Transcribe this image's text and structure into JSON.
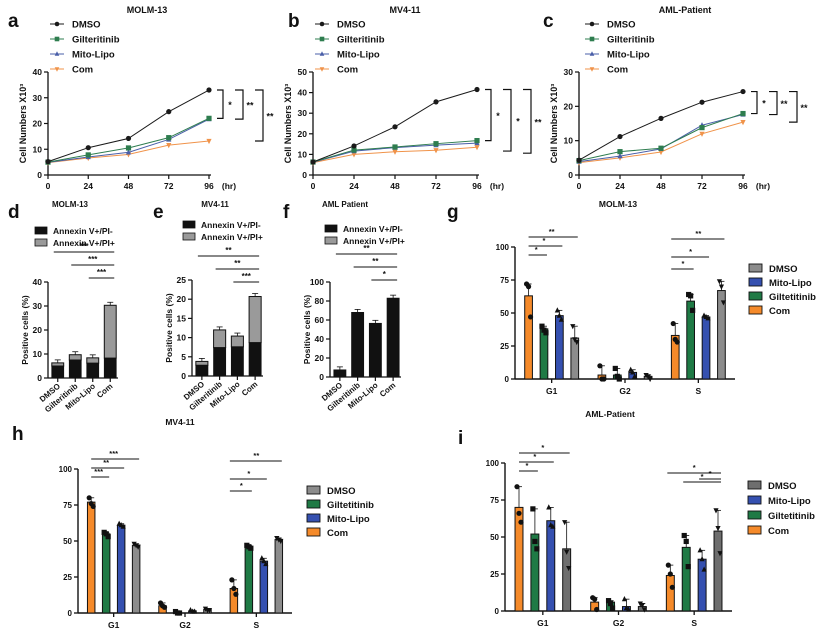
{
  "colors": {
    "dmso_line": "#1a1a1a",
    "gilteritinib_line": "#2e7d4f",
    "mitolipo_line": "#4a5fa8",
    "com_line": "#f0934a",
    "annexin_neg": "#111111",
    "annexin_pos": "#9a9a9a",
    "bar_com": "#f58a2a",
    "bar_gilt": "#1f7a45",
    "bar_mito": "#3550b0",
    "bar_dmso": "#8c8c8c",
    "bar_dmso_dark": "#6e6e6e"
  },
  "chart_data": [
    {
      "id": "a",
      "type": "line",
      "panel_label": "a",
      "title": "MOLM-13",
      "xlabel": "(hr)",
      "ylabel": "Cell Numbers X10³",
      "x": [
        0,
        24,
        48,
        72,
        96
      ],
      "xticks": [
        "0",
        "24",
        "48",
        "72",
        "96"
      ],
      "ylim": [
        0,
        40
      ],
      "yticks": [
        0,
        10,
        20,
        30,
        40
      ],
      "legend": [
        "DMSO",
        "Gilteritinib",
        "Mito-Lipo",
        "Com"
      ],
      "series": [
        {
          "name": "DMSO",
          "marker": "circle",
          "values": [
            5.2,
            10.6,
            14.2,
            24.6,
            33.0
          ]
        },
        {
          "name": "Gilteritinib",
          "marker": "square",
          "values": [
            5.0,
            7.8,
            10.5,
            14.5,
            22.0
          ]
        },
        {
          "name": "Mito-Lipo",
          "marker": "triangle-up",
          "values": [
            4.9,
            7.0,
            8.8,
            13.8,
            21.7
          ]
        },
        {
          "name": "Com",
          "marker": "triangle-down",
          "values": [
            4.8,
            6.6,
            8.0,
            11.6,
            13.2
          ]
        }
      ],
      "significance": [
        "*",
        "**",
        "**"
      ]
    },
    {
      "id": "b",
      "type": "line",
      "panel_label": "b",
      "title": "MV4-11",
      "xlabel": "(hr)",
      "ylabel": "Cell Numbers X10³",
      "x": [
        0,
        24,
        48,
        72,
        96
      ],
      "xticks": [
        "0",
        "24",
        "48",
        "72",
        "96"
      ],
      "ylim": [
        0,
        50
      ],
      "yticks": [
        0,
        10,
        20,
        30,
        40,
        50
      ],
      "legend": [
        "DMSO",
        "Gilteritinib",
        "Mito-Lipo",
        "Com"
      ],
      "series": [
        {
          "name": "DMSO",
          "marker": "circle",
          "values": [
            6.3,
            14.1,
            23.4,
            35.5,
            41.5
          ]
        },
        {
          "name": "Gilteritinib",
          "marker": "square",
          "values": [
            6.3,
            12.1,
            13.6,
            15.2,
            16.7
          ]
        },
        {
          "name": "Mito-Lipo",
          "marker": "triangle-up",
          "values": [
            6.2,
            11.6,
            13.3,
            14.5,
            15.5
          ]
        },
        {
          "name": "Com",
          "marker": "triangle-down",
          "values": [
            6.0,
            10.0,
            11.3,
            12.0,
            13.5
          ]
        }
      ],
      "significance": [
        "*",
        "*",
        "**"
      ]
    },
    {
      "id": "c",
      "type": "line",
      "panel_label": "c",
      "title": "AML-Patient",
      "xlabel": "(hr)",
      "ylabel": "Cell Numbers X10³",
      "x": [
        0,
        24,
        48,
        72,
        96
      ],
      "xticks": [
        "0",
        "24",
        "48",
        "72",
        "96"
      ],
      "ylim": [
        0,
        30
      ],
      "yticks": [
        0,
        10,
        20,
        30
      ],
      "legend": [
        "DMSO",
        "Gilteritinib",
        "Mito-Lipo",
        "Com"
      ],
      "series": [
        {
          "name": "DMSO",
          "marker": "circle",
          "values": [
            4.3,
            11.2,
            16.5,
            21.2,
            24.3
          ]
        },
        {
          "name": "Gilteritinib",
          "marker": "square",
          "values": [
            4.2,
            6.8,
            7.8,
            13.8,
            17.9
          ]
        },
        {
          "name": "Mito-Lipo",
          "marker": "triangle-up",
          "values": [
            3.9,
            5.5,
            7.6,
            14.5,
            17.6
          ]
        },
        {
          "name": "Com",
          "marker": "triangle-down",
          "values": [
            3.6,
            5.0,
            6.7,
            12.0,
            15.4
          ]
        }
      ],
      "significance": [
        "*",
        "**",
        "**"
      ]
    },
    {
      "id": "d",
      "type": "bar",
      "stacked": true,
      "panel_label": "d",
      "title": "MOLM-13",
      "ylabel": "Positive cells (%)",
      "ylim": [
        0,
        40
      ],
      "yticks": [
        0,
        10,
        20,
        30,
        40
      ],
      "categories": [
        "DMSO",
        "Gilteritinib",
        "Mito-Lipo",
        "Com"
      ],
      "series": [
        {
          "name": "Annexin V+/PI-",
          "values": [
            5.0,
            7.5,
            6.2,
            8.3
          ]
        },
        {
          "name": "Annexin V+/PI+",
          "values": [
            1.3,
            2.2,
            2.2,
            22.0
          ]
        }
      ],
      "significance": [
        "***",
        "***",
        "***"
      ]
    },
    {
      "id": "e",
      "type": "bar",
      "stacked": true,
      "panel_label": "e",
      "title": "MV4-11",
      "ylabel": "Positive cells (%)",
      "ylim": [
        0,
        25
      ],
      "yticks": [
        0,
        5,
        10,
        15,
        20,
        25
      ],
      "categories": [
        "DMSO",
        "Gilteritinib",
        "Mito-Lipo",
        "Com"
      ],
      "series": [
        {
          "name": "Annexin V+/PI-",
          "values": [
            2.8,
            7.4,
            7.6,
            8.7
          ]
        },
        {
          "name": "Annexin V+/PI+",
          "values": [
            1.0,
            4.6,
            2.8,
            12.0
          ]
        }
      ],
      "significance": [
        "**",
        "**",
        "***"
      ]
    },
    {
      "id": "f",
      "type": "bar",
      "stacked": true,
      "panel_label": "f",
      "title": "AML Patient",
      "ylabel": "Positive cells (%)",
      "ylim": [
        0,
        100
      ],
      "yticks": [
        0,
        20,
        40,
        60,
        80,
        100
      ],
      "categories": [
        "DMSO",
        "Gilteritinib",
        "Mito-Lipo",
        "Com"
      ],
      "series": [
        {
          "name": "Annexin V+/PI-",
          "values": [
            7.5,
            68.0,
            56.5,
            83.0
          ]
        },
        {
          "name": "Annexin V+/PI+",
          "values": [
            0,
            0,
            0,
            0
          ]
        }
      ],
      "significance": [
        "**",
        "**",
        "*"
      ]
    },
    {
      "id": "g",
      "type": "bar",
      "panel_label": "g",
      "title": "MOLM-13",
      "ylim": [
        0,
        100
      ],
      "yticks": [
        0,
        25,
        50,
        75,
        100
      ],
      "categories": [
        "G1",
        "G2",
        "S"
      ],
      "legend": [
        "DMSO",
        "Mito-Lipo",
        "Giltetitinib",
        "Com"
      ],
      "series": [
        {
          "name": "Com",
          "values": [
            63,
            3,
            33
          ],
          "points": [
            [
              72,
              70,
              47
            ],
            [
              10,
              0,
              0
            ],
            [
              42,
              30,
              28
            ]
          ]
        },
        {
          "name": "Giltetitinib",
          "values": [
            38,
            3,
            59
          ],
          "points": [
            [
              40,
              37,
              35
            ],
            [
              8,
              2,
              0
            ],
            [
              64,
              63,
              52
            ]
          ]
        },
        {
          "name": "Mito-Lipo",
          "values": [
            48,
            5,
            47
          ],
          "points": [
            [
              52,
              48,
              45
            ],
            [
              7,
              5,
              2
            ],
            [
              48,
              47,
              46
            ]
          ]
        },
        {
          "name": "DMSO",
          "values": [
            31,
            2,
            67
          ],
          "points": [
            [
              40,
              30,
              28
            ],
            [
              3,
              2,
              0
            ],
            [
              74,
              70,
              58
            ]
          ]
        }
      ],
      "significance": {
        "G1": [
          "*",
          "*",
          "**"
        ],
        "S": [
          "*",
          "*",
          "**"
        ]
      }
    },
    {
      "id": "h",
      "type": "bar",
      "panel_label": "h",
      "title": "MV4-11",
      "ylim": [
        0,
        100
      ],
      "yticks": [
        0,
        25,
        50,
        75,
        100
      ],
      "categories": [
        "G1",
        "G2",
        "S"
      ],
      "legend": [
        "DMSO",
        "Giltetitinib",
        "Mito-Lipo",
        "Com"
      ],
      "series": [
        {
          "name": "Com",
          "values": [
            77,
            5,
            17
          ],
          "points": [
            [
              80,
              76,
              74
            ],
            [
              7,
              5,
              4
            ],
            [
              23,
              17,
              13
            ]
          ]
        },
        {
          "name": "Giltetitinib",
          "values": [
            55,
            0.5,
            46
          ],
          "points": [
            [
              56,
              55,
              53
            ],
            [
              1,
              0,
              0
            ],
            [
              47,
              46,
              45
            ]
          ]
        },
        {
          "name": "Mito-Lipo",
          "values": [
            61,
            1.5,
            36
          ],
          "points": [
            [
              62,
              61,
              60
            ],
            [
              2,
              1,
              1
            ],
            [
              38,
              36,
              34
            ]
          ]
        },
        {
          "name": "DMSO",
          "values": [
            47,
            2.5,
            51
          ],
          "points": [
            [
              48,
              47,
              46
            ],
            [
              3,
              2,
              2
            ],
            [
              52,
              51,
              50
            ]
          ]
        }
      ],
      "significance": {
        "G1": [
          "***",
          "**",
          "***"
        ],
        "S": [
          "*",
          "*",
          "**"
        ]
      }
    },
    {
      "id": "i",
      "type": "bar",
      "panel_label": "i",
      "title": "AML-Patient",
      "ylim": [
        0,
        100
      ],
      "yticks": [
        0,
        25,
        50,
        75,
        100
      ],
      "categories": [
        "G1",
        "G2",
        "S"
      ],
      "legend": [
        "DMSO",
        "Mito-Lipo",
        "Giltetitinib",
        "Com"
      ],
      "series": [
        {
          "name": "Com",
          "values": [
            70,
            6,
            24
          ],
          "points": [
            [
              84,
              66,
              60
            ],
            [
              9,
              8,
              1
            ],
            [
              31,
              25,
              16
            ]
          ]
        },
        {
          "name": "Giltetitinib",
          "values": [
            52,
            6,
            43
          ],
          "points": [
            [
              69,
              47,
              42
            ],
            [
              7,
              5,
              2
            ],
            [
              51,
              47,
              30
            ]
          ]
        },
        {
          "name": "Mito-Lipo",
          "values": [
            61,
            3,
            35
          ],
          "points": [
            [
              70,
              58,
              57
            ],
            [
              8,
              2,
              1
            ],
            [
              41,
              35,
              28
            ]
          ]
        },
        {
          "name": "DMSO",
          "values": [
            42,
            3,
            54
          ],
          "points": [
            [
              60,
              40,
              29
            ],
            [
              5,
              4,
              1
            ],
            [
              68,
              56,
              39
            ]
          ]
        }
      ],
      "significance": {
        "G1": [
          "*",
          "*",
          "*"
        ],
        "S": [
          "*",
          "*",
          "*"
        ]
      }
    }
  ]
}
